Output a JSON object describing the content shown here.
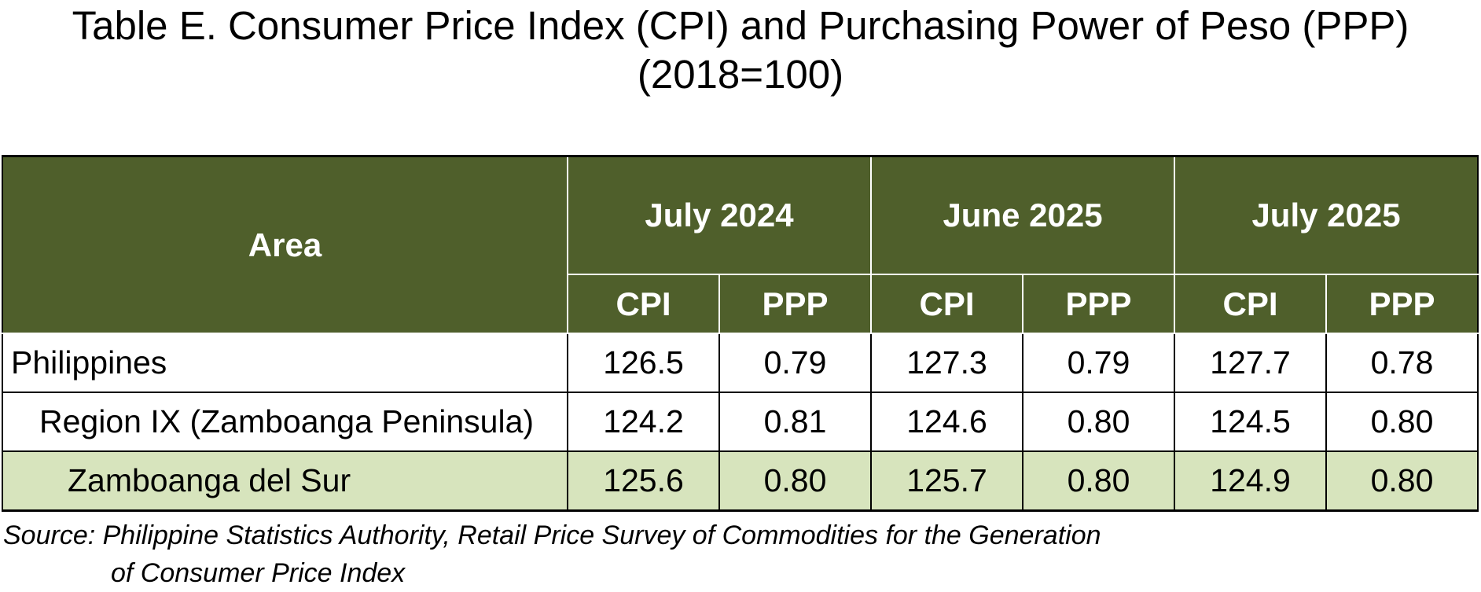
{
  "chart_data": {
    "type": "table",
    "title": "Table E. Consumer Price Index (CPI) and Purchasing Power of Peso (PPP)",
    "subtitle": "(2018=100)",
    "row_header": "Area",
    "periods": [
      "July 2024",
      "June 2025",
      "July 2025"
    ],
    "measures": [
      "CPI",
      "PPP"
    ],
    "rows": [
      {
        "area": "Philippines",
        "level": 0,
        "highlight": false,
        "values": [
          "126.5",
          "0.79",
          "127.3",
          "0.79",
          "127.7",
          "0.78"
        ]
      },
      {
        "area": "Region IX (Zamboanga Peninsula)",
        "level": 1,
        "highlight": false,
        "values": [
          "124.2",
          "0.81",
          "124.6",
          "0.80",
          "124.5",
          "0.80"
        ]
      },
      {
        "area": "Zamboanga del Sur",
        "level": 2,
        "highlight": true,
        "values": [
          "125.6",
          "0.80",
          "125.7",
          "0.80",
          "124.9",
          "0.80"
        ]
      }
    ],
    "source_line1": "Source: Philippine Statistics Authority, Retail Price Survey of Commodities for the Generation",
    "source_line2": "of Consumer Price Index"
  },
  "colors": {
    "header_bg": "#4f5f2b",
    "header_text": "#ffffff",
    "highlight_row": "#d7e4bd"
  }
}
